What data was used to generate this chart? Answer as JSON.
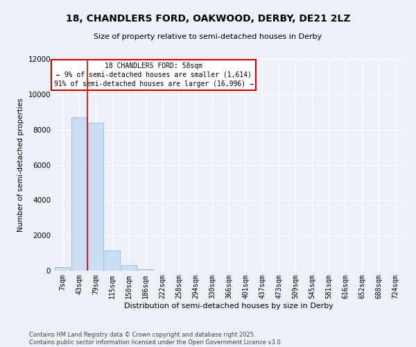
{
  "title_line1": "18, CHANDLERS FORD, OAKWOOD, DERBY, DE21 2LZ",
  "title_line2": "Size of property relative to semi-detached houses in Derby",
  "xlabel": "Distribution of semi-detached houses by size in Derby",
  "ylabel": "Number of semi-detached properties",
  "categories": [
    "7sqm",
    "43sqm",
    "79sqm",
    "115sqm",
    "150sqm",
    "186sqm",
    "222sqm",
    "258sqm",
    "294sqm",
    "330sqm",
    "366sqm",
    "401sqm",
    "437sqm",
    "473sqm",
    "509sqm",
    "545sqm",
    "581sqm",
    "616sqm",
    "652sqm",
    "688sqm",
    "724sqm"
  ],
  "values": [
    200,
    8700,
    8400,
    1150,
    310,
    60,
    10,
    0,
    0,
    0,
    0,
    0,
    0,
    0,
    0,
    0,
    0,
    0,
    0,
    0,
    0
  ],
  "bar_color": "#c9ddf5",
  "bar_edge_color": "#a0bedd",
  "vline_x": 1.5,
  "annotation_title": "18 CHANDLERS FORD: 58sqm",
  "annotation_line2": "← 9% of semi-detached houses are smaller (1,614)",
  "annotation_line3": "91% of semi-detached houses are larger (16,996) →",
  "ylim": [
    0,
    12000
  ],
  "yticks": [
    0,
    2000,
    4000,
    6000,
    8000,
    10000,
    12000
  ],
  "footer_line1": "Contains HM Land Registry data © Crown copyright and database right 2025.",
  "footer_line2": "Contains public sector information licensed under the Open Government Licence v3.0.",
  "bg_color": "#edf1f7",
  "plot_bg_color": "#edf1f7",
  "grid_color": "#ffffff",
  "annotation_box_color": "#ffffff",
  "annotation_box_edge": "#cc0000",
  "vline_color": "#cc0000",
  "title_fontsize": 10,
  "subtitle_fontsize": 8,
  "tick_fontsize": 7,
  "ylabel_fontsize": 7.5,
  "xlabel_fontsize": 8,
  "footer_fontsize": 6
}
